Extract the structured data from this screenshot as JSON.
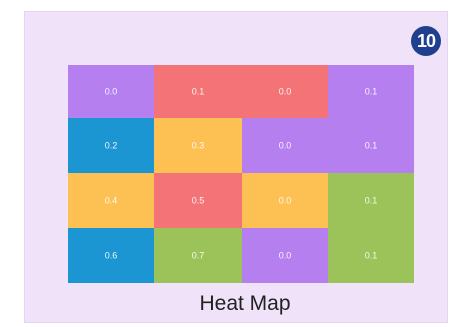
{
  "badge": {
    "number": "10",
    "color": "#1f3f8f"
  },
  "caption": "Heat Map",
  "chart_data": {
    "type": "heatmap",
    "rows": [
      {
        "cells": [
          {
            "label": "0.0",
            "color": "#b57ff0"
          },
          {
            "label": "0.1",
            "color": "#f47377",
            "span": 2
          },
          {
            "label": "0.0",
            "hidden": true
          },
          {
            "label": "0.1",
            "color": "#b57ff0"
          }
        ]
      },
      {
        "cells": [
          {
            "label": "0.2",
            "color": "#1c95d3"
          },
          {
            "label": "0.3",
            "color": "#fcc053"
          },
          {
            "label": "0.0",
            "color": "#b57ff0"
          },
          {
            "label": "0.1",
            "color": "#b57ff0"
          }
        ]
      },
      {
        "cells": [
          {
            "label": "0.4",
            "color": "#fcc053"
          },
          {
            "label": "0.5",
            "color": "#f47377"
          },
          {
            "label": "0.0",
            "color": "#fcc053"
          },
          {
            "label": "0.1",
            "color": "#9bc35a"
          }
        ]
      },
      {
        "cells": [
          {
            "label": "0.6",
            "color": "#1c95d3"
          },
          {
            "label": "0.7",
            "color": "#9bc35a"
          },
          {
            "label": "0.0",
            "color": "#b57ff0"
          },
          {
            "label": "0.1",
            "color": "#9bc35a"
          }
        ]
      }
    ],
    "title": "Heat Map"
  }
}
